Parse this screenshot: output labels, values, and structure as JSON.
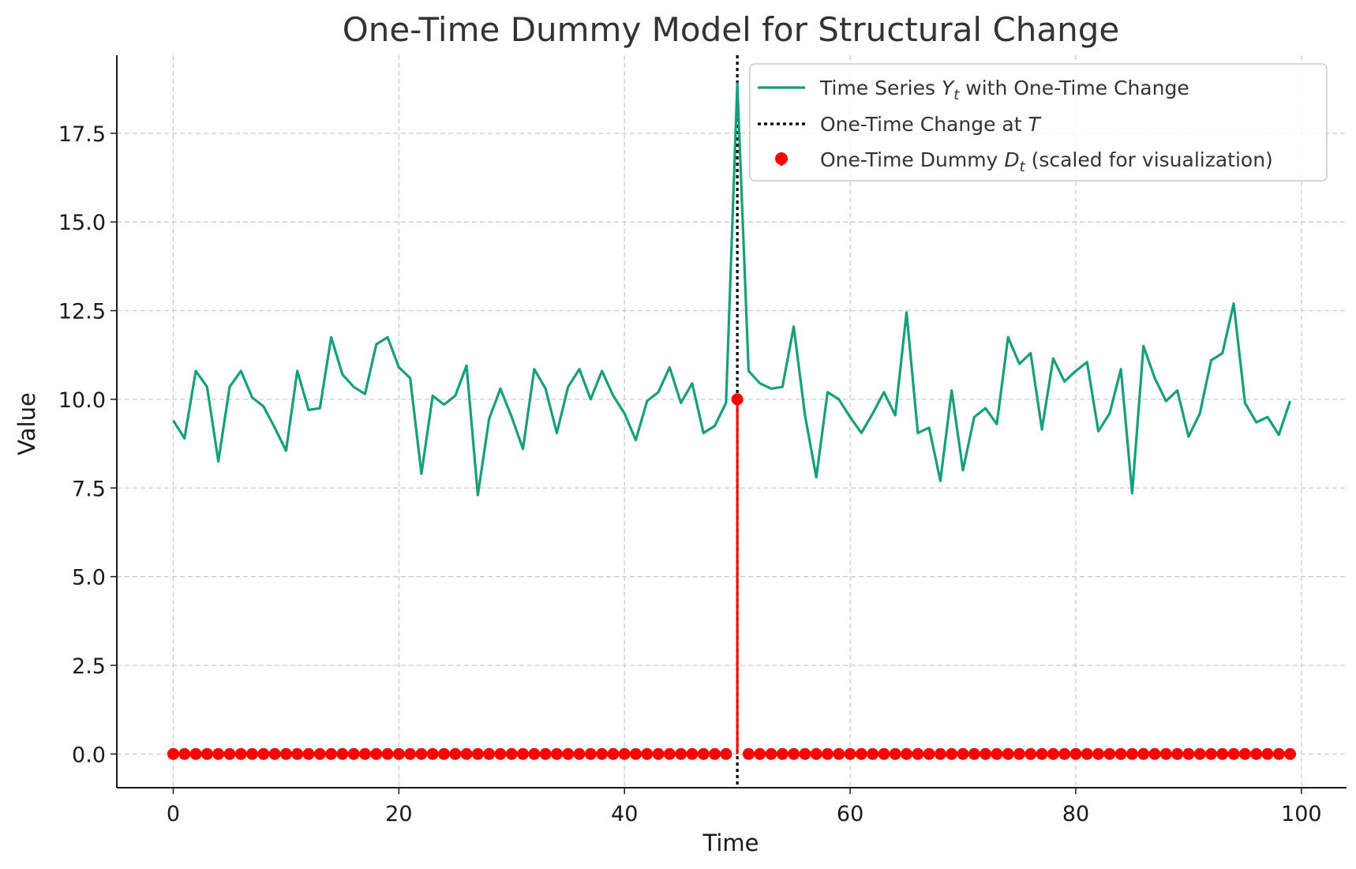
{
  "chart_data": {
    "type": "line",
    "title": "One-Time Dummy Model for Structural Change",
    "xlabel": "Time",
    "ylabel": "Value",
    "xlim": [
      -5,
      104
    ],
    "ylim": [
      -0.95,
      19.7
    ],
    "xticks": [
      0,
      20,
      40,
      60,
      80,
      100
    ],
    "yticks": [
      0.0,
      2.5,
      5.0,
      7.5,
      10.0,
      12.5,
      15.0,
      17.5
    ],
    "ytick_labels": [
      "0.0",
      "2.5",
      "5.0",
      "7.5",
      "10.0",
      "12.5",
      "15.0",
      "17.5"
    ],
    "grid": true,
    "legend_position": "upper-right",
    "colors": {
      "series": "#169f7a",
      "vline": "#000000",
      "dummy": "#ff0000"
    },
    "series": [
      {
        "name": "Time Series Y_t with One-Time Change",
        "legend_main": "Time Series ",
        "legend_sym": "Y",
        "legend_sub": "t",
        "legend_rest": " with One-Time Change",
        "x_start": 0,
        "values": [
          9.4,
          8.9,
          10.8,
          10.35,
          8.25,
          10.35,
          10.8,
          10.05,
          9.8,
          9.2,
          8.55,
          10.8,
          9.7,
          9.75,
          11.75,
          10.7,
          10.35,
          10.15,
          11.55,
          11.75,
          10.9,
          10.6,
          7.9,
          10.1,
          9.85,
          10.1,
          10.95,
          7.3,
          9.45,
          10.3,
          9.5,
          8.6,
          10.85,
          10.3,
          9.05,
          10.35,
          10.85,
          10.0,
          10.8,
          10.1,
          9.6,
          8.85,
          9.95,
          10.2,
          10.9,
          9.9,
          10.45,
          9.05,
          9.25,
          9.9,
          18.9,
          10.8,
          10.45,
          10.3,
          10.35,
          12.05,
          9.55,
          7.8,
          10.2,
          10.0,
          9.5,
          9.05,
          9.6,
          10.2,
          9.55,
          12.45,
          9.05,
          9.2,
          7.7,
          10.25,
          8.0,
          9.5,
          9.75,
          9.3,
          11.75,
          11.0,
          11.3,
          9.15,
          11.15,
          10.5,
          10.8,
          11.05,
          9.1,
          9.6,
          10.85,
          7.35,
          11.5,
          10.6,
          9.95,
          10.25,
          8.95,
          9.6,
          11.1,
          11.3,
          12.7,
          9.9,
          9.35,
          9.5,
          9.0,
          9.95
        ]
      },
      {
        "name": "One-Time Dummy D_t (scaled for visualization)",
        "legend_main": "One-Time Dummy ",
        "legend_sym": "D",
        "legend_sub": "t",
        "legend_rest": " (scaled for visualization)",
        "x_start": 0,
        "count": 100,
        "baseline": 0,
        "spike_at": 50,
        "spike_value": 10
      }
    ],
    "vline": {
      "name": "One-Time Change at T",
      "legend_main": "One-Time Change at ",
      "legend_sym": "T",
      "x": 50
    }
  }
}
